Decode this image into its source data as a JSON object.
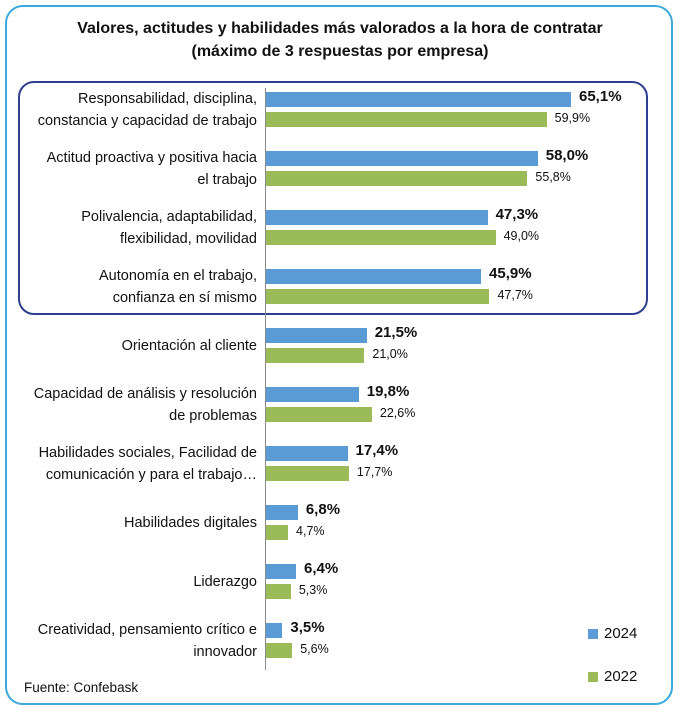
{
  "chart_data": {
    "type": "bar",
    "orientation": "horizontal",
    "title_line1": "Valores, actitudes y habilidades más valorados a la hora de contratar",
    "title_line2": "(máximo de 3 respuestas por empresa)",
    "categories": [
      [
        "Responsabilidad, disciplina,",
        "constancia y capacidad de trabajo"
      ],
      [
        "Actitud proactiva y positiva hacia",
        "el trabajo"
      ],
      [
        "Polivalencia, adaptabilidad,",
        "flexibilidad, movilidad"
      ],
      [
        "Autonomía en el trabajo,",
        "confianza en sí mismo"
      ],
      [
        "Orientación al cliente"
      ],
      [
        "Capacidad de análisis y resolución",
        "de problemas"
      ],
      [
        "Habilidades sociales, Facilidad de",
        "comunicación y para el trabajo…"
      ],
      [
        "Habilidades digitales"
      ],
      [
        "Liderazgo"
      ],
      [
        "Creatividad, pensamiento crítico e",
        "innovador"
      ]
    ],
    "series": [
      {
        "name": "2024",
        "color": "#5b9bd5",
        "values": [
          65.1,
          58.0,
          47.3,
          45.9,
          21.5,
          19.8,
          17.4,
          6.8,
          6.4,
          3.5
        ],
        "labels": [
          "65,1%",
          "58,0%",
          "47,3%",
          "45,9%",
          "21,5%",
          "19,8%",
          "17,4%",
          "6,8%",
          "6,4%",
          "3,5%"
        ]
      },
      {
        "name": "2022",
        "color": "#9bbb59",
        "values": [
          59.9,
          55.8,
          49.0,
          47.7,
          21.0,
          22.6,
          17.7,
          4.7,
          5.3,
          5.6
        ],
        "labels": [
          "59,9%",
          "55,8%",
          "49,0%",
          "47,7%",
          "21,0%",
          "22,6%",
          "17,7%",
          "4,7%",
          "5,3%",
          "5,6%"
        ]
      }
    ],
    "xlim": [
      0,
      70
    ],
    "highlighted_categories": 4,
    "legend_position": "bottom-right"
  },
  "source": "Fuente: Confebask"
}
